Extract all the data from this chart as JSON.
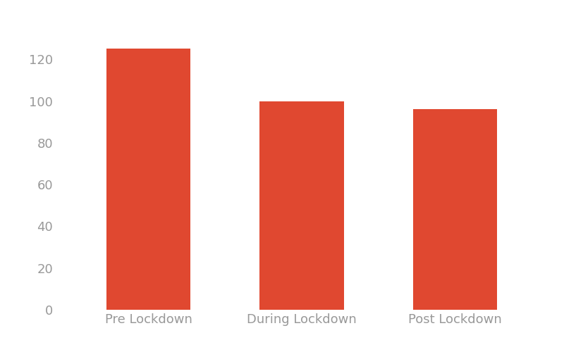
{
  "categories": [
    "Pre Lockdown",
    "During Lockdown",
    "Post Lockdown"
  ],
  "values": [
    125,
    100,
    96
  ],
  "bar_color": "#E04830",
  "background_color": "#ffffff",
  "ylim": [
    0,
    140
  ],
  "yticks": [
    0,
    20,
    40,
    60,
    80,
    100,
    120
  ],
  "tick_label_fontsize": 13,
  "bar_width": 0.55,
  "tick_label_color": "#999999",
  "figsize": [
    8.0,
    5.0
  ],
  "dpi": 100
}
